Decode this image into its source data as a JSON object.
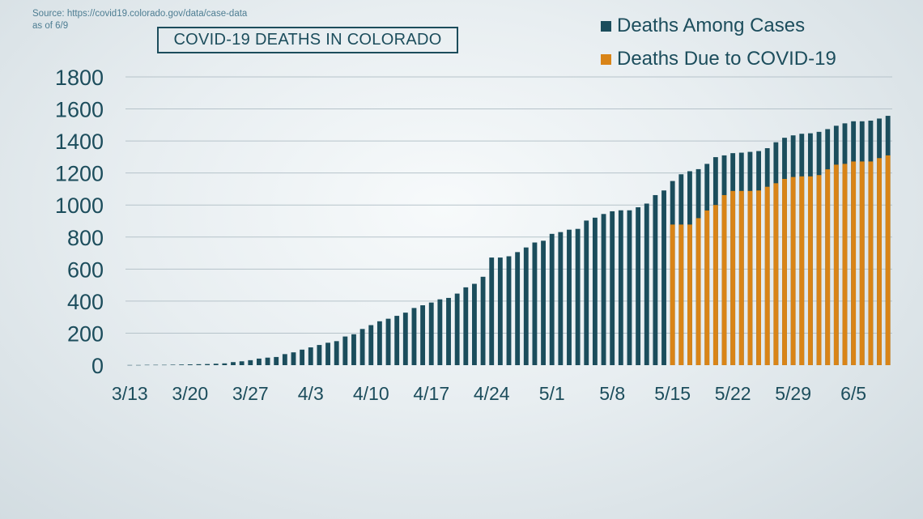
{
  "source": {
    "line1": "Source: https://covid19.colorado.gov/data/case-data",
    "line2": "as of 6/9"
  },
  "colors": {
    "deaths_among_cases": "#1b4d5c",
    "deaths_due_to_covid": "#d98417",
    "grid": "#b6c3ca",
    "text": "#1c4d5c"
  },
  "chart_data": {
    "type": "bar",
    "title": "COVID-19 DEATHS IN COLORADO",
    "xlabel": "",
    "ylabel": "",
    "ylim": [
      0,
      1800
    ],
    "yticks": [
      0,
      200,
      400,
      600,
      800,
      1000,
      1200,
      1400,
      1600,
      1800
    ],
    "xtick_labels": [
      "3/13",
      "3/20",
      "3/27",
      "4/3",
      "4/10",
      "4/17",
      "4/24",
      "5/1",
      "5/8",
      "5/15",
      "5/22",
      "5/29",
      "6/5"
    ],
    "legend_position": "top-right",
    "grid": true,
    "categories": [
      "3/13",
      "3/14",
      "3/15",
      "3/16",
      "3/17",
      "3/18",
      "3/19",
      "3/20",
      "3/21",
      "3/22",
      "3/23",
      "3/24",
      "3/25",
      "3/26",
      "3/27",
      "3/28",
      "3/29",
      "3/30",
      "3/31",
      "4/1",
      "4/2",
      "4/3",
      "4/4",
      "4/5",
      "4/6",
      "4/7",
      "4/8",
      "4/9",
      "4/10",
      "4/11",
      "4/12",
      "4/13",
      "4/14",
      "4/15",
      "4/16",
      "4/17",
      "4/18",
      "4/19",
      "4/20",
      "4/21",
      "4/22",
      "4/23",
      "4/24",
      "4/25",
      "4/26",
      "4/27",
      "4/28",
      "4/29",
      "4/30",
      "5/1",
      "5/2",
      "5/3",
      "5/4",
      "5/5",
      "5/6",
      "5/7",
      "5/8",
      "5/9",
      "5/10",
      "5/11",
      "5/12",
      "5/13",
      "5/14",
      "5/15",
      "5/16",
      "5/17",
      "5/18",
      "5/19",
      "5/20",
      "5/21",
      "5/22",
      "5/23",
      "5/24",
      "5/25",
      "5/26",
      "5/27",
      "5/28",
      "5/29",
      "5/30",
      "5/31",
      "6/1",
      "6/2",
      "6/3",
      "6/4",
      "6/5",
      "6/6",
      "6/7",
      "6/8",
      "6/9"
    ],
    "series": [
      {
        "name": "Deaths Among Cases",
        "values": [
          1,
          1,
          2,
          2,
          2,
          3,
          4,
          5,
          6,
          7,
          9,
          11,
          19,
          24,
          31,
          41,
          47,
          51,
          69,
          80,
          97,
          111,
          126,
          140,
          150,
          179,
          193,
          226,
          250,
          274,
          290,
          308,
          328,
          357,
          374,
          391,
          411,
          420,
          447,
          486,
          508,
          552,
          672,
          672,
          680,
          706,
          735,
          766,
          777,
          820,
          831,
          846,
          851,
          903,
          921,
          944,
          961,
          967,
          967,
          986,
          1009,
          1062,
          1091,
          1150,
          1192,
          1211,
          1224,
          1257,
          1299,
          1310,
          1324,
          1327,
          1332,
          1337,
          1355,
          1392,
          1420,
          1435,
          1445,
          1448,
          1457,
          1474,
          1495,
          1510,
          1523,
          1523,
          1527,
          1540,
          1557
        ]
      },
      {
        "name": "Deaths Due to COVID-19",
        "values": [
          null,
          null,
          null,
          null,
          null,
          null,
          null,
          null,
          null,
          null,
          null,
          null,
          null,
          null,
          null,
          null,
          null,
          null,
          null,
          null,
          null,
          null,
          null,
          null,
          null,
          null,
          null,
          null,
          null,
          null,
          null,
          null,
          null,
          null,
          null,
          null,
          null,
          null,
          null,
          null,
          null,
          null,
          null,
          null,
          null,
          null,
          null,
          null,
          null,
          null,
          null,
          null,
          null,
          null,
          null,
          null,
          null,
          null,
          null,
          null,
          null,
          null,
          null,
          878,
          878,
          878,
          918,
          966,
          1000,
          1062,
          1088,
          1088,
          1088,
          1091,
          1114,
          1136,
          1163,
          1175,
          1179,
          1179,
          1187,
          1223,
          1252,
          1257,
          1272,
          1272,
          1272,
          1293,
          1310
        ]
      }
    ]
  }
}
